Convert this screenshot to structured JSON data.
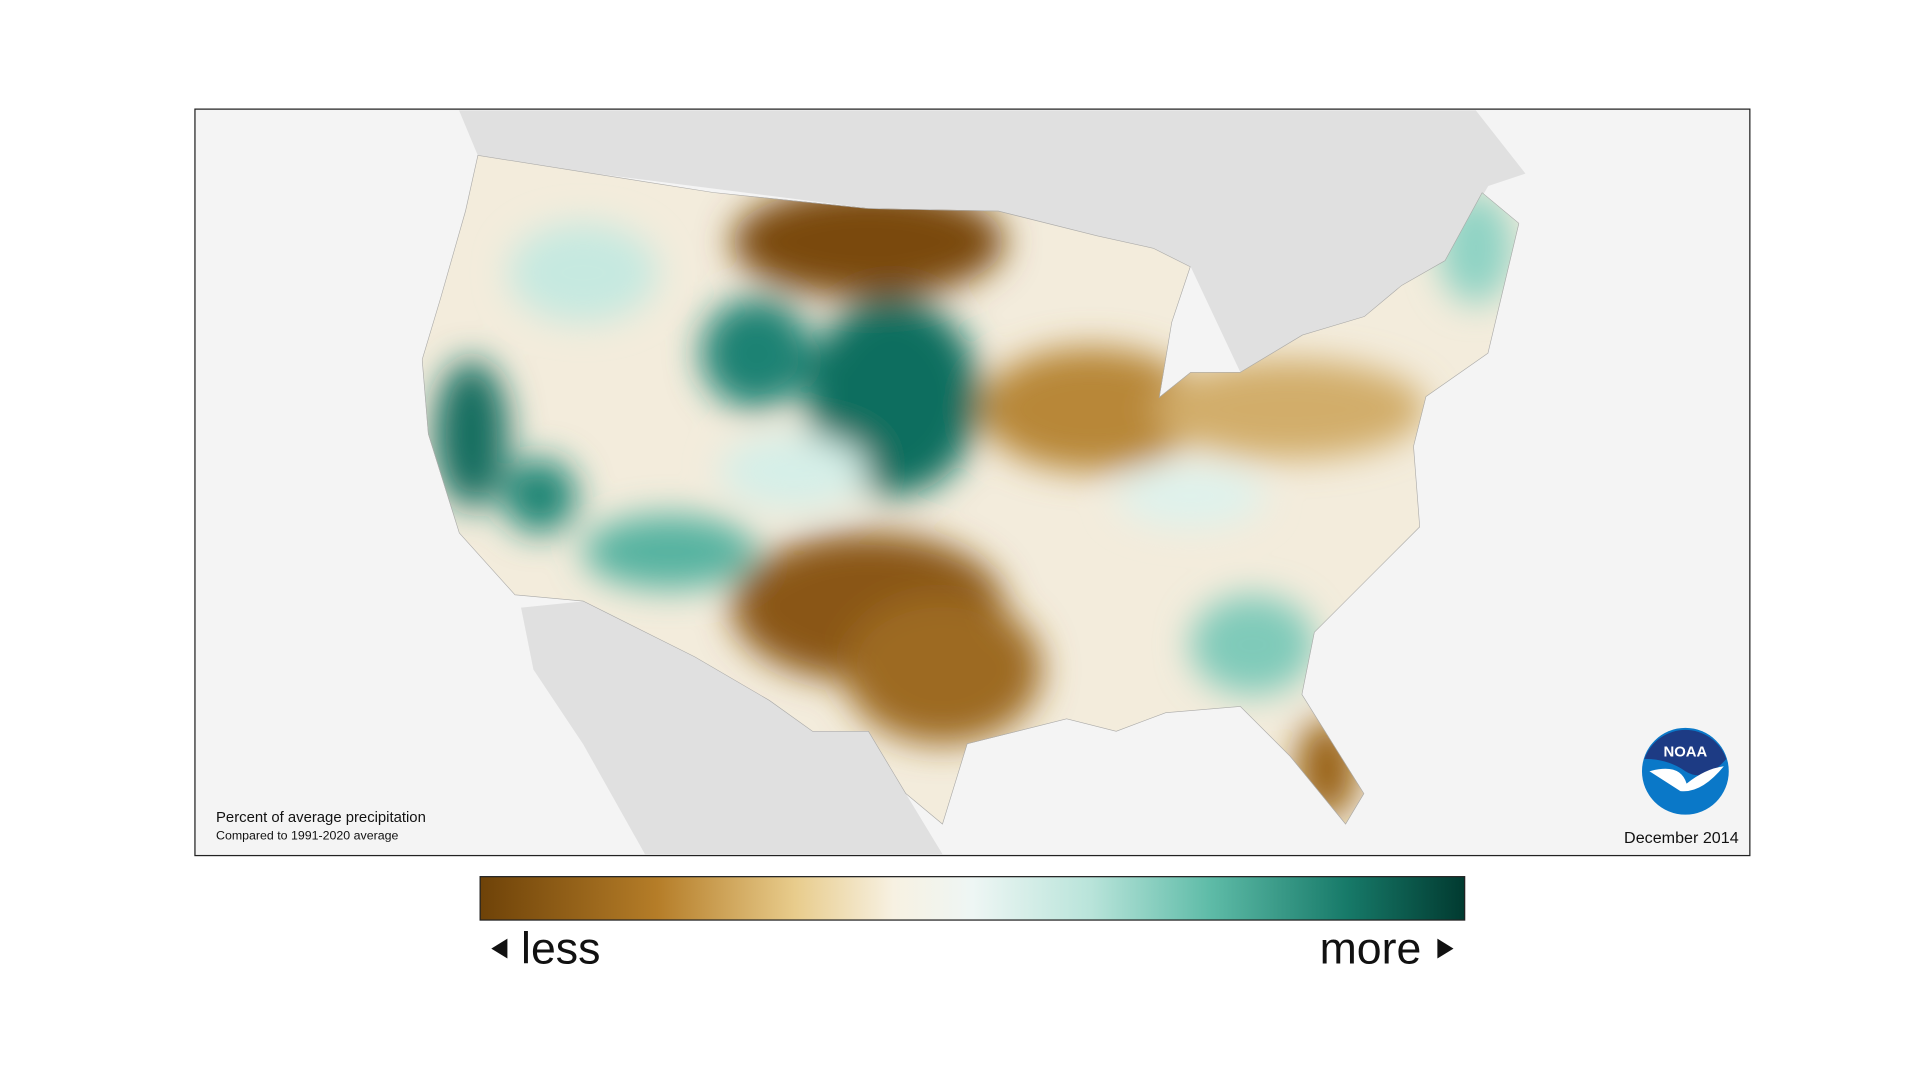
{
  "map": {
    "caption": "Percent of average precipitation",
    "subcaption": "Compared to 1991-2020 average",
    "date": "December 2014"
  },
  "legend": {
    "low": "less",
    "high": "more"
  },
  "logo": {
    "label": "NOAA"
  }
}
